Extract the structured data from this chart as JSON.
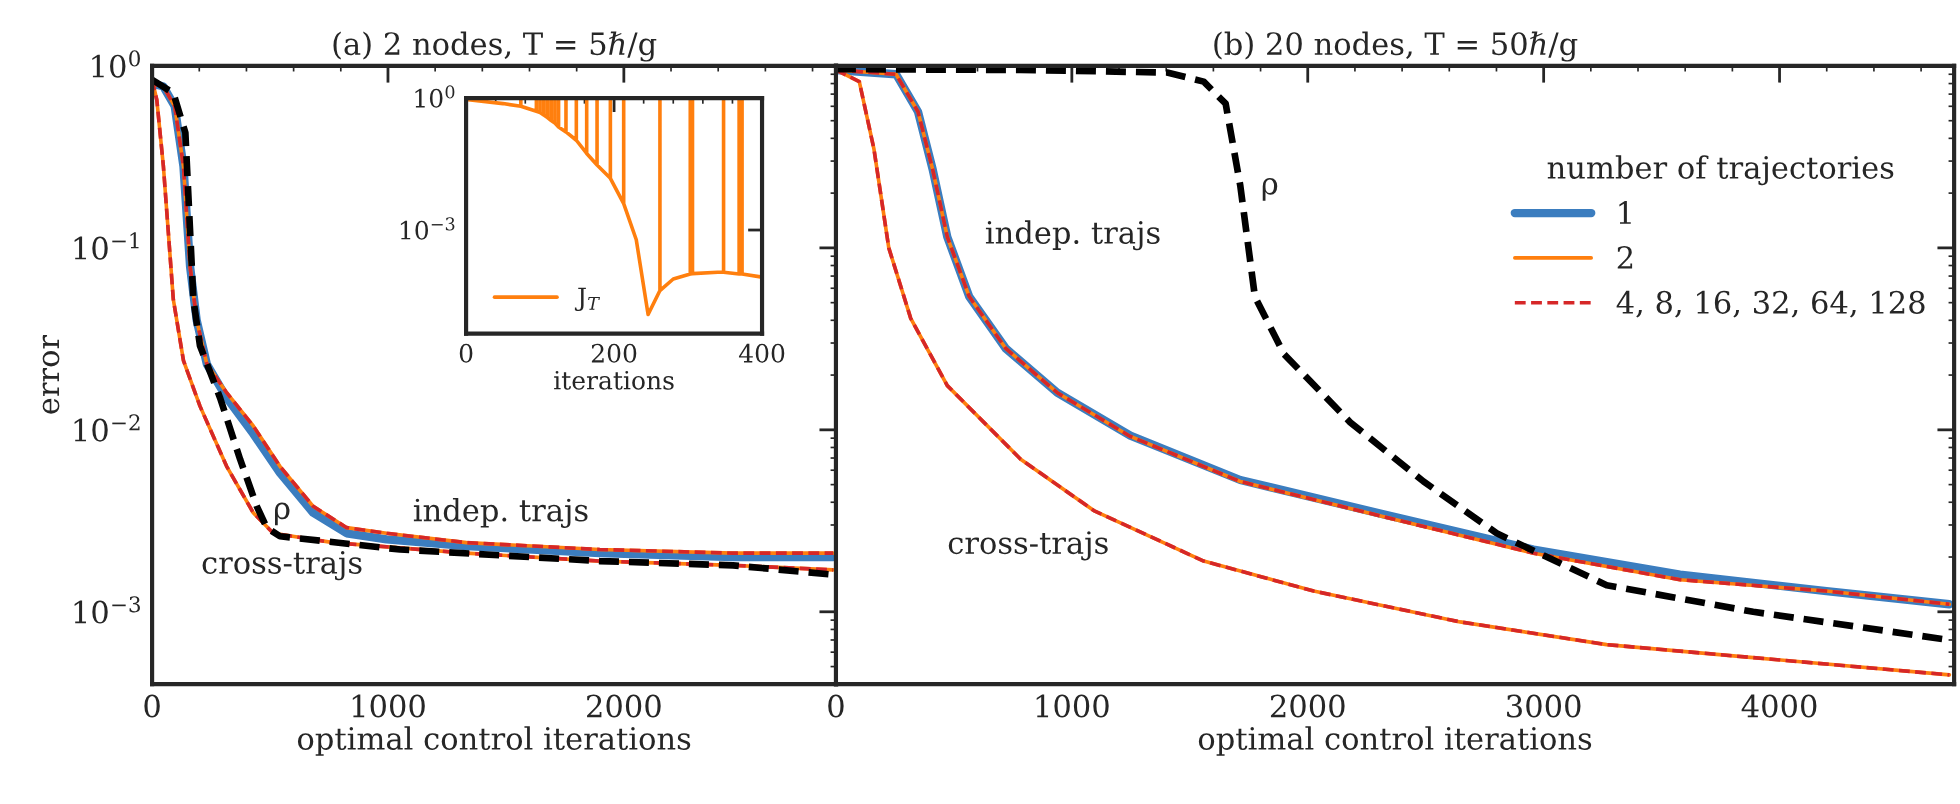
{
  "chart_data": [
    {
      "type": "line",
      "title": "(a) 2 nodes, T = 5ℏ/g",
      "xlabel": "optimal control iterations",
      "ylabel": "error",
      "log": "y",
      "xlim": [
        0,
        2900
      ],
      "ylim": [
        0.0004,
        1
      ],
      "xticks": [
        0,
        1000,
        2000
      ],
      "yticks": [
        {
          "value": 1,
          "label": "10$^{0}$"
        },
        {
          "value": 0.1,
          "label": "10$^{−1}$"
        },
        {
          "value": 0.01,
          "label": "10$^{−2}$"
        },
        {
          "value": 0.001,
          "label": "10$^{−3}$"
        }
      ],
      "series": [
        {
          "color": "#3b7dbf",
          "line_style": "solid",
          "x": [
            0,
            48,
            96,
            133,
            161,
            189,
            232,
            316,
            429,
            542,
            683,
            825,
            994,
            1333,
            1898,
            2463,
            2887
          ],
          "values": [
            0.8,
            0.77,
            0.6,
            0.28,
            0.079,
            0.04,
            0.023,
            0.015,
            0.0095,
            0.0058,
            0.0035,
            0.0027,
            0.0025,
            0.0023,
            0.0021,
            0.002,
            0.002
          ]
        },
        {
          "color": "#ff7f0e",
          "line_style": "solid",
          "x": [
            0,
            48,
            96,
            133,
            161,
            189,
            232,
            316,
            429,
            542,
            683,
            825,
            994,
            1333,
            1898,
            2463,
            2887
          ],
          "values": [
            0.8,
            0.77,
            0.6,
            0.28,
            0.079,
            0.04,
            0.023,
            0.016,
            0.0105,
            0.0063,
            0.0038,
            0.0029,
            0.0027,
            0.0024,
            0.0022,
            0.0021,
            0.0021
          ]
        },
        {
          "color": "#d62728",
          "line_style": "dashed",
          "x": [
            0,
            48,
            96,
            133,
            161,
            189,
            232,
            316,
            429,
            542,
            683,
            825,
            994,
            1333,
            1898,
            2463,
            2887
          ],
          "values": [
            0.8,
            0.77,
            0.6,
            0.28,
            0.079,
            0.04,
            0.023,
            0.016,
            0.0105,
            0.0063,
            0.0038,
            0.0029,
            0.0027,
            0.0024,
            0.0022,
            0.0021,
            0.0021
          ]
        },
        {
          "color": "#ff7f0e",
          "line_style": "solid",
          "x": [
            0,
            20,
            48,
            90,
            133,
            203,
            316,
            429,
            514,
            768,
            1333,
            1898,
            2463,
            2887
          ],
          "values": [
            0.84,
            0.65,
            0.28,
            0.052,
            0.024,
            0.0135,
            0.0063,
            0.0035,
            0.0027,
            0.0024,
            0.0021,
            0.0019,
            0.0018,
            0.0017
          ]
        },
        {
          "color": "#d62728",
          "line_style": "dashed",
          "x": [
            0,
            20,
            48,
            90,
            133,
            203,
            316,
            429,
            514,
            768,
            1333,
            1898,
            2463,
            2887
          ],
          "values": [
            0.84,
            0.65,
            0.28,
            0.052,
            0.024,
            0.0135,
            0.0063,
            0.0035,
            0.0027,
            0.0024,
            0.0021,
            0.0019,
            0.0018,
            0.0017
          ]
        },
        {
          "color": "#000000",
          "line_style": "dashed",
          "x": [
            0,
            90,
            141,
            175,
            203,
            288,
            373,
            444,
            486,
            542,
            1051,
            1898,
            2463,
            2887
          ],
          "values": [
            0.84,
            0.71,
            0.43,
            0.052,
            0.029,
            0.015,
            0.0069,
            0.0038,
            0.0029,
            0.0026,
            0.0022,
            0.0019,
            0.0018,
            0.0016
          ]
        }
      ],
      "annotations": [
        "indep. trajs",
        "cross-trajs",
        "ρ"
      ]
    },
    {
      "type": "line",
      "xlabel": "iterations",
      "log": "y",
      "xlim": [
        0,
        400
      ],
      "ylim": [
        4.4e-06,
        1
      ],
      "xticks": [
        0,
        200,
        400
      ],
      "yticks": [
        {
          "value": 1,
          "label": "10$^{0}$"
        },
        {
          "value": 0.001,
          "label": "10$^{−3}$"
        }
      ],
      "legend": "lower left",
      "series": [
        {
          "name": "J$_{T}$",
          "color": "#ff7f0e",
          "line_style": "solid",
          "x": [
            0,
            50,
            74,
            74,
            74,
            95,
            95,
            95,
            100,
            100,
            100,
            105,
            105,
            105,
            110,
            110,
            110,
            115,
            115,
            115,
            120,
            120,
            120,
            125,
            125,
            125,
            135,
            135,
            135,
            149,
            149,
            149,
            163,
            163,
            163,
            177,
            177,
            177,
            195,
            195,
            195,
            213,
            213,
            213,
            230,
            246,
            262,
            262,
            262,
            280,
            303,
            303,
            303,
            306,
            306,
            306,
            340,
            348,
            348,
            348,
            369,
            369,
            369,
            373,
            373,
            373,
            400
          ],
          "values": [
            0.93,
            0.75,
            0.65,
            0.95,
            0.65,
            0.5,
            0.95,
            0.5,
            0.47,
            0.95,
            0.47,
            0.41,
            0.95,
            0.41,
            0.36,
            0.95,
            0.36,
            0.31,
            0.95,
            0.31,
            0.27,
            0.95,
            0.27,
            0.22,
            0.95,
            0.22,
            0.17,
            0.95,
            0.17,
            0.11,
            0.95,
            0.11,
            0.055,
            0.95,
            0.055,
            0.03,
            0.95,
            0.03,
            0.015,
            0.95,
            0.015,
            0.004,
            0.95,
            0.004,
            0.0006,
            1.2e-05,
            4.2e-05,
            0.95,
            4.2e-05,
            7.7e-05,
            0.0001,
            0.95,
            0.0001,
            0.000102,
            0.95,
            0.000102,
            0.00011,
            0.00011,
            0.95,
            0.00011,
            0.0001,
            0.95,
            0.0001,
            0.0001,
            0.95,
            0.0001,
            8.5e-05
          ]
        }
      ]
    },
    {
      "type": "line",
      "title": "(b) 20 nodes, T = 50ℏ/g",
      "xlabel": "optimal control iterations",
      "log": "y",
      "xlim": [
        0,
        4740
      ],
      "ylim": [
        0.0004,
        1
      ],
      "xticks": [
        0,
        1000,
        2000,
        3000,
        4000
      ],
      "yticks": [
        1,
        0.1,
        0.01,
        0.001
      ],
      "tick_labels": "x",
      "legend": "upper right",
      "legend_title": "number of trajectories",
      "series": [
        {
          "name": "1",
          "color": "#3b7dbf",
          "line_style": "solid",
          "x": [
            0,
            255,
            348,
            410,
            472,
            565,
            720,
            938,
            1248,
            1714,
            2335,
            2957,
            3578,
            4199,
            4720
          ],
          "values": [
            0.95,
            0.9,
            0.56,
            0.27,
            0.115,
            0.054,
            0.028,
            0.016,
            0.0093,
            0.0053,
            0.0034,
            0.0022,
            0.0016,
            0.0013,
            0.0011
          ]
        },
        {
          "name": "2",
          "color": "#ff7f0e",
          "line_style": "solid",
          "x": [
            0,
            255,
            348,
            410,
            472,
            565,
            720,
            938,
            1248,
            1714,
            2335,
            2957,
            3578,
            4199,
            4720
          ],
          "values": [
            0.95,
            0.9,
            0.56,
            0.27,
            0.115,
            0.054,
            0.028,
            0.016,
            0.0092,
            0.0052,
            0.0033,
            0.0021,
            0.0015,
            0.0013,
            0.0011
          ]
        },
        {
          "name": "4, 8, 16, 32, 64, 128",
          "color": "#d62728",
          "line_style": "dashed",
          "x": [
            0,
            255,
            348,
            410,
            472,
            565,
            720,
            938,
            1248,
            1714,
            2335,
            2957,
            3578,
            4199,
            4720
          ],
          "values": [
            0.95,
            0.9,
            0.56,
            0.27,
            0.115,
            0.054,
            0.028,
            0.016,
            0.0092,
            0.0052,
            0.0033,
            0.0021,
            0.0015,
            0.0013,
            0.0011
          ]
        },
        {
          "color": "#ff7f0e",
          "line_style": "solid",
          "x": [
            0,
            99,
            161,
            224,
            317,
            472,
            783,
            1093,
            1559,
            2025,
            2646,
            3267,
            3888,
            4720
          ],
          "values": [
            0.95,
            0.82,
            0.35,
            0.1,
            0.041,
            0.0175,
            0.0069,
            0.0036,
            0.0019,
            0.0013,
            0.00088,
            0.00066,
            0.00056,
            0.00045
          ]
        },
        {
          "color": "#d62728",
          "line_style": "dashed",
          "x": [
            0,
            99,
            161,
            224,
            317,
            472,
            783,
            1093,
            1559,
            2025,
            2646,
            3267,
            3888,
            4720
          ],
          "values": [
            0.95,
            0.82,
            0.35,
            0.1,
            0.041,
            0.0175,
            0.0069,
            0.0036,
            0.0019,
            0.0013,
            0.00088,
            0.00066,
            0.00056,
            0.00045
          ]
        },
        {
          "color": "#000000",
          "line_style": "dashed",
          "x": [
            0,
            783,
            1404,
            1559,
            1652,
            1714,
            1776,
            1900,
            2180,
            2491,
            2801,
            3267,
            3888,
            4720
          ],
          "values": [
            0.96,
            0.95,
            0.92,
            0.82,
            0.62,
            0.22,
            0.054,
            0.026,
            0.011,
            0.0052,
            0.0027,
            0.0014,
            0.001,
            0.0007
          ]
        }
      ],
      "annotations": [
        "indep. trajs",
        "cross-trajs",
        "ρ"
      ]
    }
  ]
}
